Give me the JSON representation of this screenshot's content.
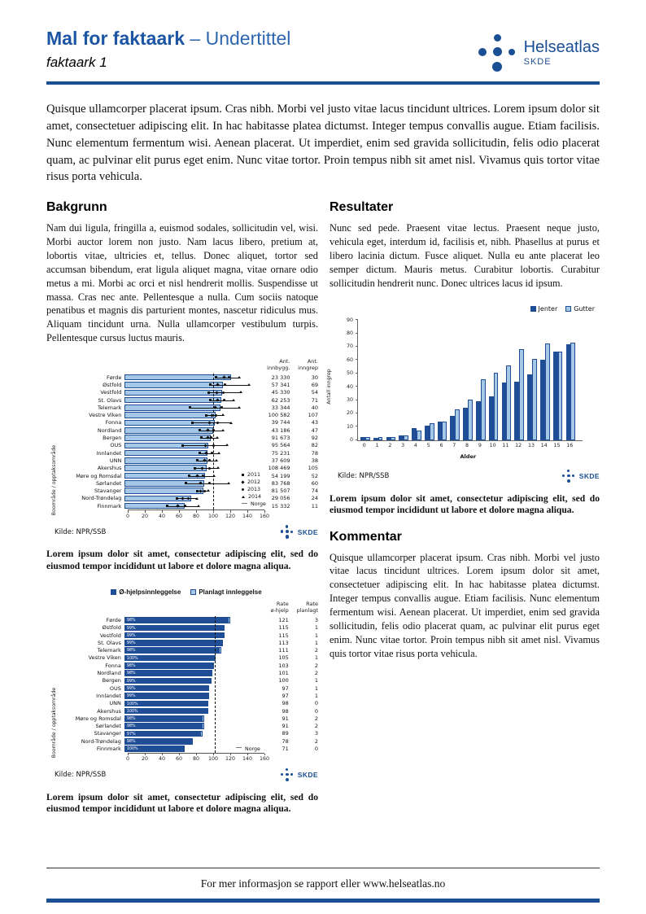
{
  "header": {
    "title_main": "Mal for faktaark",
    "title_sub": " – Undertittel",
    "subtitle": "faktaark 1",
    "logo_text": "Helseatlas",
    "logo_sub": "SKDE"
  },
  "intro": "Quisque ullamcorper placerat ipsum. Cras nibh. Morbi vel justo vitae lacus tincidunt ultrices. Lorem ipsum dolor sit amet, consectetuer adipiscing elit. In hac habitasse platea dictumst. Integer tempus convallis augue. Etiam facilisis. Nunc elementum fermentum wisi. Aenean placerat. Ut imperdiet, enim sed gravida sollicitudin, felis odio placerat quam, ac pulvinar elit purus eget enim. Nunc vitae tortor. Proin tempus nibh sit amet nisl. Vivamus quis tortor vitae risus porta vehicula.",
  "sections": {
    "bakgrunn": {
      "heading": "Bakgrunn",
      "body": "Nam dui ligula, fringilla a, euismod sodales, sollicitudin vel, wisi. Morbi auctor lorem non justo. Nam lacus libero, pretium at, lobortis vitae, ultricies et, tellus. Donec aliquet, tortor sed accumsan bibendum, erat ligula aliquet magna, vitae ornare odio metus a mi. Morbi ac orci et nisl hendrerit mollis. Suspendisse ut massa. Cras nec ante. Pellentesque a nulla. Cum sociis natoque penatibus et magnis dis parturient montes, nascetur ridiculus mus. Aliquam tincidunt urna. Nulla ullamcorper vestibulum turpis. Pellentesque cursus luctus mauris."
    },
    "resultater": {
      "heading": "Resultater",
      "body": "Nunc sed pede. Praesent vitae lectus. Praesent neque justo, vehicula eget, interdum id, facilisis et, nibh. Phasellus at purus et libero lacinia dictum. Fusce aliquet. Nulla eu ante placerat leo semper dictum. Mauris metus. Curabitur lobortis. Curabitur sollicitudin hendrerit nunc. Donec ultrices lacus id ipsum."
    },
    "kommentar": {
      "heading": "Kommentar",
      "body": "Quisque ullamcorper placerat ipsum. Cras nibh. Morbi vel justo vitae lacus tincidunt ultrices. Lorem ipsum dolor sit amet, consectetuer adipiscing elit. In hac habitasse platea dictumst. Integer tempus convallis augue. Etiam facilisis. Nunc elementum fermentum wisi. Aenean placerat. Ut imperdiet, enim sed gravida sollicitudin, felis odio placerat quam, ac pulvinar elit purus eget enim. Nunc vitae tortor. Proin tempus nibh sit amet nisl. Vivamus quis tortor vitae risus porta vehicula."
    }
  },
  "figure_caption": "Lorem ipsum dolor sit amet, consectetur adipiscing elit, sed do eiusmod tempor incididunt ut labore et dolore magna aliqua.",
  "footer": {
    "text": "For mer informasjon se rapport eller www.helseatlas.no"
  },
  "colors": {
    "navy": "#1b4f94",
    "bar_dark": "#1f4e96",
    "bar_light": "#a5c8e9",
    "norge_line": "#111111"
  },
  "chart_data": [
    {
      "type": "bar",
      "orientation": "horizontal",
      "ylabel": "Boområde / opptaksområde",
      "source": "Kilde: NPR/SSB",
      "xlim": [
        0,
        160
      ],
      "xticks": [
        0,
        20,
        40,
        60,
        80,
        100,
        120,
        140,
        160
      ],
      "norge_line": 100,
      "col_headers": [
        "Ant.\ninnbygg.",
        "Ant.\ninngrep"
      ],
      "legend": [
        "2011",
        "2012",
        "2013",
        "2014",
        "Norge"
      ],
      "rows": [
        {
          "label": "Førde",
          "value": 124,
          "markers": [
            107,
            116,
            122,
            133
          ],
          "innbygg": "23 330",
          "inngrep": "30"
        },
        {
          "label": "Østfold",
          "value": 115,
          "markers": [
            100,
            109,
            117,
            145
          ],
          "innbygg": "57 341",
          "inngrep": "69"
        },
        {
          "label": "Vestfold",
          "value": 114,
          "markers": [
            98,
            108,
            115,
            135
          ],
          "innbygg": "45 330",
          "inngrep": "54"
        },
        {
          "label": "St. Olavs",
          "value": 113,
          "markers": [
            100,
            109,
            116,
            127
          ],
          "innbygg": "62 253",
          "inngrep": "71"
        },
        {
          "label": "Telemark",
          "value": 112,
          "markers": [
            76,
            106,
            113,
            133
          ],
          "innbygg": "33 344",
          "inngrep": "40"
        },
        {
          "label": "Vestre Viken",
          "value": 106,
          "markers": [
            95,
            102,
            107,
            114
          ],
          "innbygg": "100 582",
          "inngrep": "107"
        },
        {
          "label": "Fonna",
          "value": 105,
          "markers": [
            79,
            99,
            109,
            124
          ],
          "innbygg": "39 744",
          "inngrep": "43"
        },
        {
          "label": "Nordland",
          "value": 103,
          "markers": [
            88,
            97,
            104,
            114
          ],
          "innbygg": "43 186",
          "inngrep": "47"
        },
        {
          "label": "Bergen",
          "value": 101,
          "markers": [
            90,
            97,
            101,
            108
          ],
          "innbygg": "91 673",
          "inngrep": "92"
        },
        {
          "label": "OUS",
          "value": 98,
          "markers": [
            68,
            94,
            104,
            119
          ],
          "innbygg": "95 564",
          "inngrep": "82"
        },
        {
          "label": "Innlandet",
          "value": 97,
          "markers": [
            88,
            95,
            102,
            110
          ],
          "innbygg": "75 231",
          "inngrep": "78"
        },
        {
          "label": "UNN",
          "value": 97,
          "markers": [
            85,
            93,
            99,
            107
          ],
          "innbygg": "37 609",
          "inngrep": "38"
        },
        {
          "label": "Akershus",
          "value": 96,
          "markers": [
            82,
            91,
            99,
            109
          ],
          "innbygg": "108 469",
          "inngrep": "105"
        },
        {
          "label": "Møre og Romsdal",
          "value": 94,
          "markers": [
            75,
            85,
            92,
            104
          ],
          "innbygg": "54 199",
          "inngrep": "52"
        },
        {
          "label": "Sørlandet",
          "value": 93,
          "markers": [
            72,
            89,
            99,
            121
          ],
          "innbygg": "83 768",
          "inngrep": "60"
        },
        {
          "label": "Stavanger",
          "value": 92,
          "markers": [
            85,
            89,
            93,
            97
          ],
          "innbygg": "81 507",
          "inngrep": "74"
        },
        {
          "label": "Nord-Trøndelag",
          "value": 78,
          "markers": [
            61,
            68,
            74,
            84
          ],
          "innbygg": "29 056",
          "inngrep": "24"
        },
        {
          "label": "Finnmark",
          "value": 70,
          "markers": [
            50,
            62,
            71,
            86
          ],
          "innbygg": "15 332",
          "inngrep": "11"
        }
      ]
    },
    {
      "type": "bar",
      "orientation": "vertical",
      "legend": [
        "Jenter",
        "Gutter"
      ],
      "xlabel": "Alder",
      "ylabel": "Antall inngrep",
      "ylim": [
        0,
        90
      ],
      "yticks": [
        0,
        10,
        20,
        30,
        40,
        50,
        60,
        70,
        80,
        90
      ],
      "categories": [
        "0",
        "1",
        "2",
        "3",
        "4",
        "5",
        "6",
        "7",
        "8",
        "9",
        "10",
        "11",
        "12",
        "13",
        "14",
        "15",
        "16"
      ],
      "series": [
        {
          "name": "Jenter",
          "values": [
            2,
            1.5,
            2.5,
            3.5,
            9,
            11,
            13.5,
            18,
            24,
            29,
            32.5,
            43,
            43.5,
            49,
            60,
            66,
            72
          ]
        },
        {
          "name": "Gutter",
          "values": [
            2.5,
            2.5,
            2,
            3.5,
            7,
            12.5,
            14,
            23,
            30.5,
            45.5,
            50.5,
            56,
            68,
            61,
            72.5,
            66.5,
            73
          ]
        }
      ],
      "source": "Kilde: NPR/SSB"
    },
    {
      "type": "bar",
      "orientation": "horizontal",
      "legend": [
        "Ø-hjelpsinnleggelse",
        "Planlagt innleggelse"
      ],
      "ylabel": "Boområde / opptaksområde",
      "source": "Kilde: NPR/SSB",
      "xlim": [
        0,
        160
      ],
      "xticks": [
        0,
        20,
        40,
        60,
        80,
        100,
        120,
        140,
        160
      ],
      "norge_line": 102,
      "norge_label": "Norge",
      "col_headers": [
        "Rate\nø-hjelp",
        "Rate\nplanlagt"
      ],
      "rows": [
        {
          "label": "Førde",
          "ohjelp": 121,
          "planlagt": 3,
          "pct": "98%"
        },
        {
          "label": "Østfold",
          "ohjelp": 115,
          "planlagt": 1,
          "pct": "99%"
        },
        {
          "label": "Vestfold",
          "ohjelp": 115,
          "planlagt": 1,
          "pct": "99%"
        },
        {
          "label": "St. Olavs",
          "ohjelp": 113,
          "planlagt": 1,
          "pct": "99%"
        },
        {
          "label": "Telemark",
          "ohjelp": 111,
          "planlagt": 2,
          "pct": "98%"
        },
        {
          "label": "Vestre Viken",
          "ohjelp": 105,
          "planlagt": 1,
          "pct": "100%"
        },
        {
          "label": "Fonna",
          "ohjelp": 103,
          "planlagt": 2,
          "pct": "98%"
        },
        {
          "label": "Nordland",
          "ohjelp": 101,
          "planlagt": 2,
          "pct": "98%"
        },
        {
          "label": "Bergen",
          "ohjelp": 100,
          "planlagt": 1,
          "pct": "99%"
        },
        {
          "label": "OUS",
          "ohjelp": 97,
          "planlagt": 1,
          "pct": "99%"
        },
        {
          "label": "Innlandet",
          "ohjelp": 97,
          "planlagt": 1,
          "pct": "99%"
        },
        {
          "label": "UNN",
          "ohjelp": 98,
          "planlagt": 0,
          "pct": "100%"
        },
        {
          "label": "Akershus",
          "ohjelp": 98,
          "planlagt": 0,
          "pct": "100%"
        },
        {
          "label": "Møre og Romsdal",
          "ohjelp": 91,
          "planlagt": 2,
          "pct": "98%"
        },
        {
          "label": "Sørlandet",
          "ohjelp": 91,
          "planlagt": 2,
          "pct": "98%"
        },
        {
          "label": "Stavanger",
          "ohjelp": 89,
          "planlagt": 3,
          "pct": "97%"
        },
        {
          "label": "Nord-Trøndelag",
          "ohjelp": 78,
          "planlagt": 2,
          "pct": "98%"
        },
        {
          "label": "Finnmark",
          "ohjelp": 71,
          "planlagt": 0,
          "pct": "100%"
        }
      ]
    }
  ]
}
